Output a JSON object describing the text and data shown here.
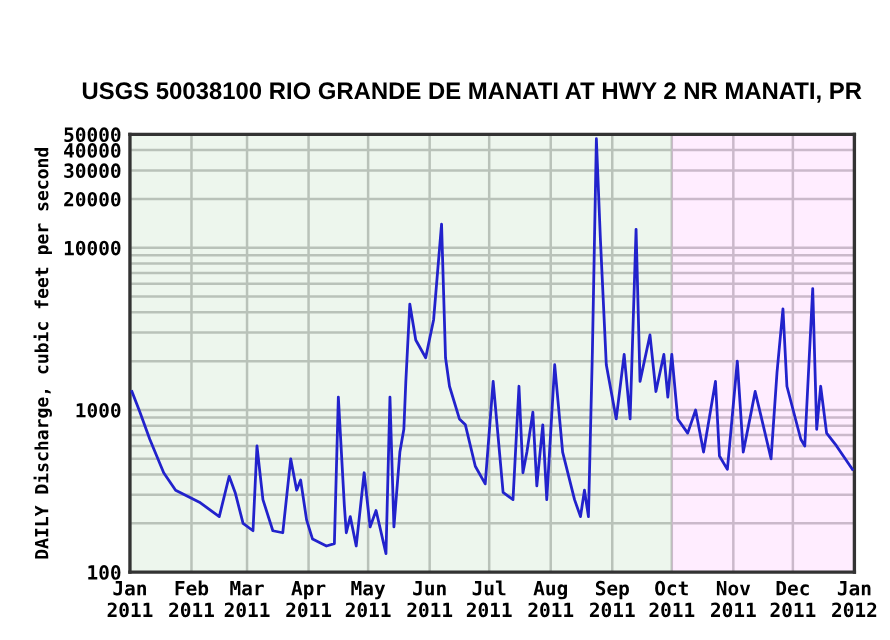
{
  "chart_data": {
    "type": "line",
    "title": "USGS 50038100 RIO GRANDE DE MANATI AT HWY 2 NR MANATI, PR",
    "ylabel": "DAILY Discharge, cubic feet per second",
    "log": "y",
    "grid": true,
    "legend": false,
    "marker": "none",
    "line_style": "solid",
    "xlim": [
      "2011-01-01",
      "2012-01-01"
    ],
    "xticks": [
      {
        "value": "2011-01-01",
        "label": "Jan\n2011"
      },
      {
        "value": "2011-02-01",
        "label": "Feb\n2011"
      },
      {
        "value": "2011-03-01",
        "label": "Mar\n2011"
      },
      {
        "value": "2011-04-01",
        "label": "Apr\n2011"
      },
      {
        "value": "2011-05-01",
        "label": "May\n2011"
      },
      {
        "value": "2011-06-01",
        "label": "Jun\n2011"
      },
      {
        "value": "2011-07-01",
        "label": "Jul\n2011"
      },
      {
        "value": "2011-08-01",
        "label": "Aug\n2011"
      },
      {
        "value": "2011-09-01",
        "label": "Sep\n2011"
      },
      {
        "value": "2011-10-01",
        "label": "Oct\n2011"
      },
      {
        "value": "2011-11-01",
        "label": "Nov\n2011"
      },
      {
        "value": "2011-12-01",
        "label": "Dec\n2011"
      },
      {
        "value": "2012-01-01",
        "label": "Jan\n2012"
      }
    ],
    "ylim": [
      100,
      50000
    ],
    "yticks": [
      100,
      {
        "value": 200,
        "label": null
      },
      {
        "value": 300,
        "label": null
      },
      {
        "value": 400,
        "label": null
      },
      {
        "value": 500,
        "label": null
      },
      {
        "value": 600,
        "label": null
      },
      {
        "value": 700,
        "label": null
      },
      {
        "value": 800,
        "label": null
      },
      {
        "value": 900,
        "label": null
      },
      1000,
      {
        "value": 2000,
        "label": null
      },
      {
        "value": 3000,
        "label": null
      },
      {
        "value": 4000,
        "label": null
      },
      {
        "value": 5000,
        "label": null
      },
      {
        "value": 6000,
        "label": null
      },
      {
        "value": 7000,
        "label": null
      },
      {
        "value": 8000,
        "label": null
      },
      {
        "value": 9000,
        "label": null
      },
      10000,
      20000,
      30000,
      40000,
      50000
    ],
    "bands": [
      {
        "axis": "x",
        "from": "2011-01-01",
        "to": "2011-10-01",
        "color": "#008000"
      },
      {
        "axis": "x",
        "from": "2011-10-01",
        "to": "2012-01-01",
        "color": "#ff00ff"
      }
    ],
    "series": [
      {
        "color": "#2222cc",
        "x": [
          "2011-01-02",
          "2011-01-06",
          "2011-01-11",
          "2011-01-18",
          "2011-01-24",
          "2011-02-05",
          "2011-02-15",
          "2011-02-20",
          "2011-02-23",
          "2011-02-27",
          "2011-03-04",
          "2011-03-06",
          "2011-03-09",
          "2011-03-14",
          "2011-03-19",
          "2011-03-23",
          "2011-03-26",
          "2011-03-28",
          "2011-03-31",
          "2011-04-03",
          "2011-04-10",
          "2011-04-14",
          "2011-04-16",
          "2011-04-19",
          "2011-04-20",
          "2011-04-22",
          "2011-04-25",
          "2011-04-29",
          "2011-05-02",
          "2011-05-05",
          "2011-05-10",
          "2011-05-12",
          "2011-05-14",
          "2011-05-17",
          "2011-05-19",
          "2011-05-20",
          "2011-05-22",
          "2011-05-25",
          "2011-05-30",
          "2011-06-03",
          "2011-06-07",
          "2011-06-09",
          "2011-06-11",
          "2011-06-16",
          "2011-06-19",
          "2011-06-24",
          "2011-06-29",
          "2011-07-03",
          "2011-07-08",
          "2011-07-13",
          "2011-07-16",
          "2011-07-18",
          "2011-07-20",
          "2011-07-23",
          "2011-07-25",
          "2011-07-28",
          "2011-07-30",
          "2011-08-03",
          "2011-08-07",
          "2011-08-13",
          "2011-08-16",
          "2011-08-18",
          "2011-08-20",
          "2011-08-22",
          "2011-08-24",
          "2011-08-26",
          "2011-08-29",
          "2011-09-03",
          "2011-09-07",
          "2011-09-10",
          "2011-09-13",
          "2011-09-15",
          "2011-09-20",
          "2011-09-23",
          "2011-09-27",
          "2011-09-29",
          "2011-10-01",
          "2011-10-04",
          "2011-10-09",
          "2011-10-13",
          "2011-10-17",
          "2011-10-23",
          "2011-10-25",
          "2011-10-29",
          "2011-11-03",
          "2011-11-06",
          "2011-11-10",
          "2011-11-12",
          "2011-11-16",
          "2011-11-20",
          "2011-11-23",
          "2011-11-26",
          "2011-11-28",
          "2011-12-05",
          "2011-12-07",
          "2011-12-11",
          "2011-12-13",
          "2011-12-15",
          "2011-12-18",
          "2011-12-23",
          "2011-12-31"
        ],
        "values": [
          1300,
          970,
          660,
          410,
          320,
          270,
          220,
          390,
          310,
          200,
          180,
          600,
          280,
          180,
          175,
          500,
          320,
          370,
          210,
          160,
          145,
          150,
          1200,
          260,
          175,
          220,
          145,
          410,
          190,
          240,
          130,
          1200,
          190,
          550,
          760,
          1500,
          4500,
          2700,
          2100,
          3600,
          14000,
          2100,
          1400,
          880,
          810,
          450,
          350,
          1500,
          310,
          280,
          1400,
          410,
          550,
          970,
          340,
          810,
          280,
          1900,
          550,
          280,
          220,
          320,
          220,
          2300,
          47000,
          11500,
          1900,
          880,
          2200,
          880,
          13000,
          1500,
          2900,
          1300,
          2200,
          1200,
          2200,
          880,
          720,
          1000,
          550,
          1500,
          520,
          430,
          2000,
          550,
          970,
          1300,
          810,
          500,
          1700,
          4200,
          1400,
          660,
          600,
          5600,
          760,
          1400,
          720,
          600,
          430
        ]
      }
    ]
  }
}
